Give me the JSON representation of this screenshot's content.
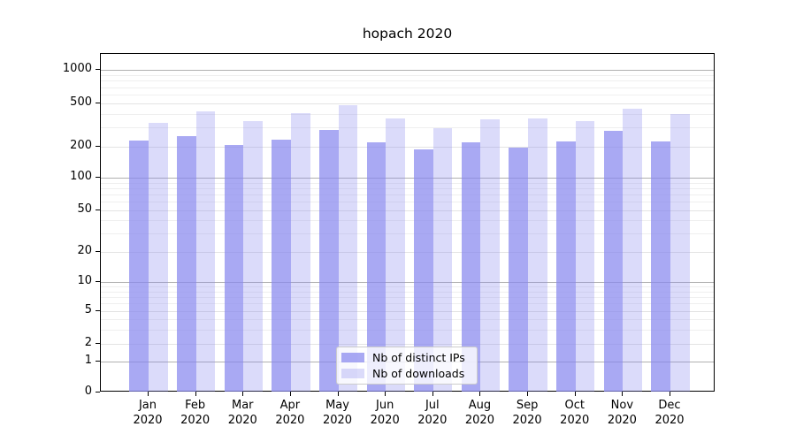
{
  "figure": {
    "title": "hopach 2020"
  },
  "chart_data": {
    "type": "bar",
    "title": "hopach 2020",
    "categories": [
      "Jan",
      "Feb",
      "Mar",
      "Apr",
      "May",
      "Jun",
      "Jul",
      "Aug",
      "Sep",
      "Oct",
      "Nov",
      "Dec"
    ],
    "category_year": "2020",
    "series": [
      {
        "name": "Nb of distinct IPs",
        "color": "#8888ee",
        "alpha": 0.72,
        "values": [
          230,
          248,
          207,
          234,
          285,
          220,
          190,
          218,
          196,
          224,
          282,
          222
        ]
      },
      {
        "name": "Nb of downloads",
        "color": "#8888ee",
        "alpha": 0.3,
        "values": [
          330,
          425,
          344,
          405,
          485,
          361,
          297,
          360,
          367,
          341,
          447,
          398
        ]
      }
    ],
    "xlabel": "",
    "ylabel": "",
    "yscale": "symlog",
    "yticks": [
      0,
      1,
      2,
      5,
      10,
      20,
      50,
      100,
      200,
      500,
      1000
    ],
    "ylim": [
      0,
      1600
    ],
    "grid": true,
    "legend_position": "inside-bottom-center",
    "colors": {
      "bar_base": "#8888ee",
      "grid_decade": "#b0b0b0",
      "grid_major": "#e3e3e3",
      "grid_minor": "#efefef",
      "axis": "#000000",
      "background": "#ffffff"
    }
  }
}
